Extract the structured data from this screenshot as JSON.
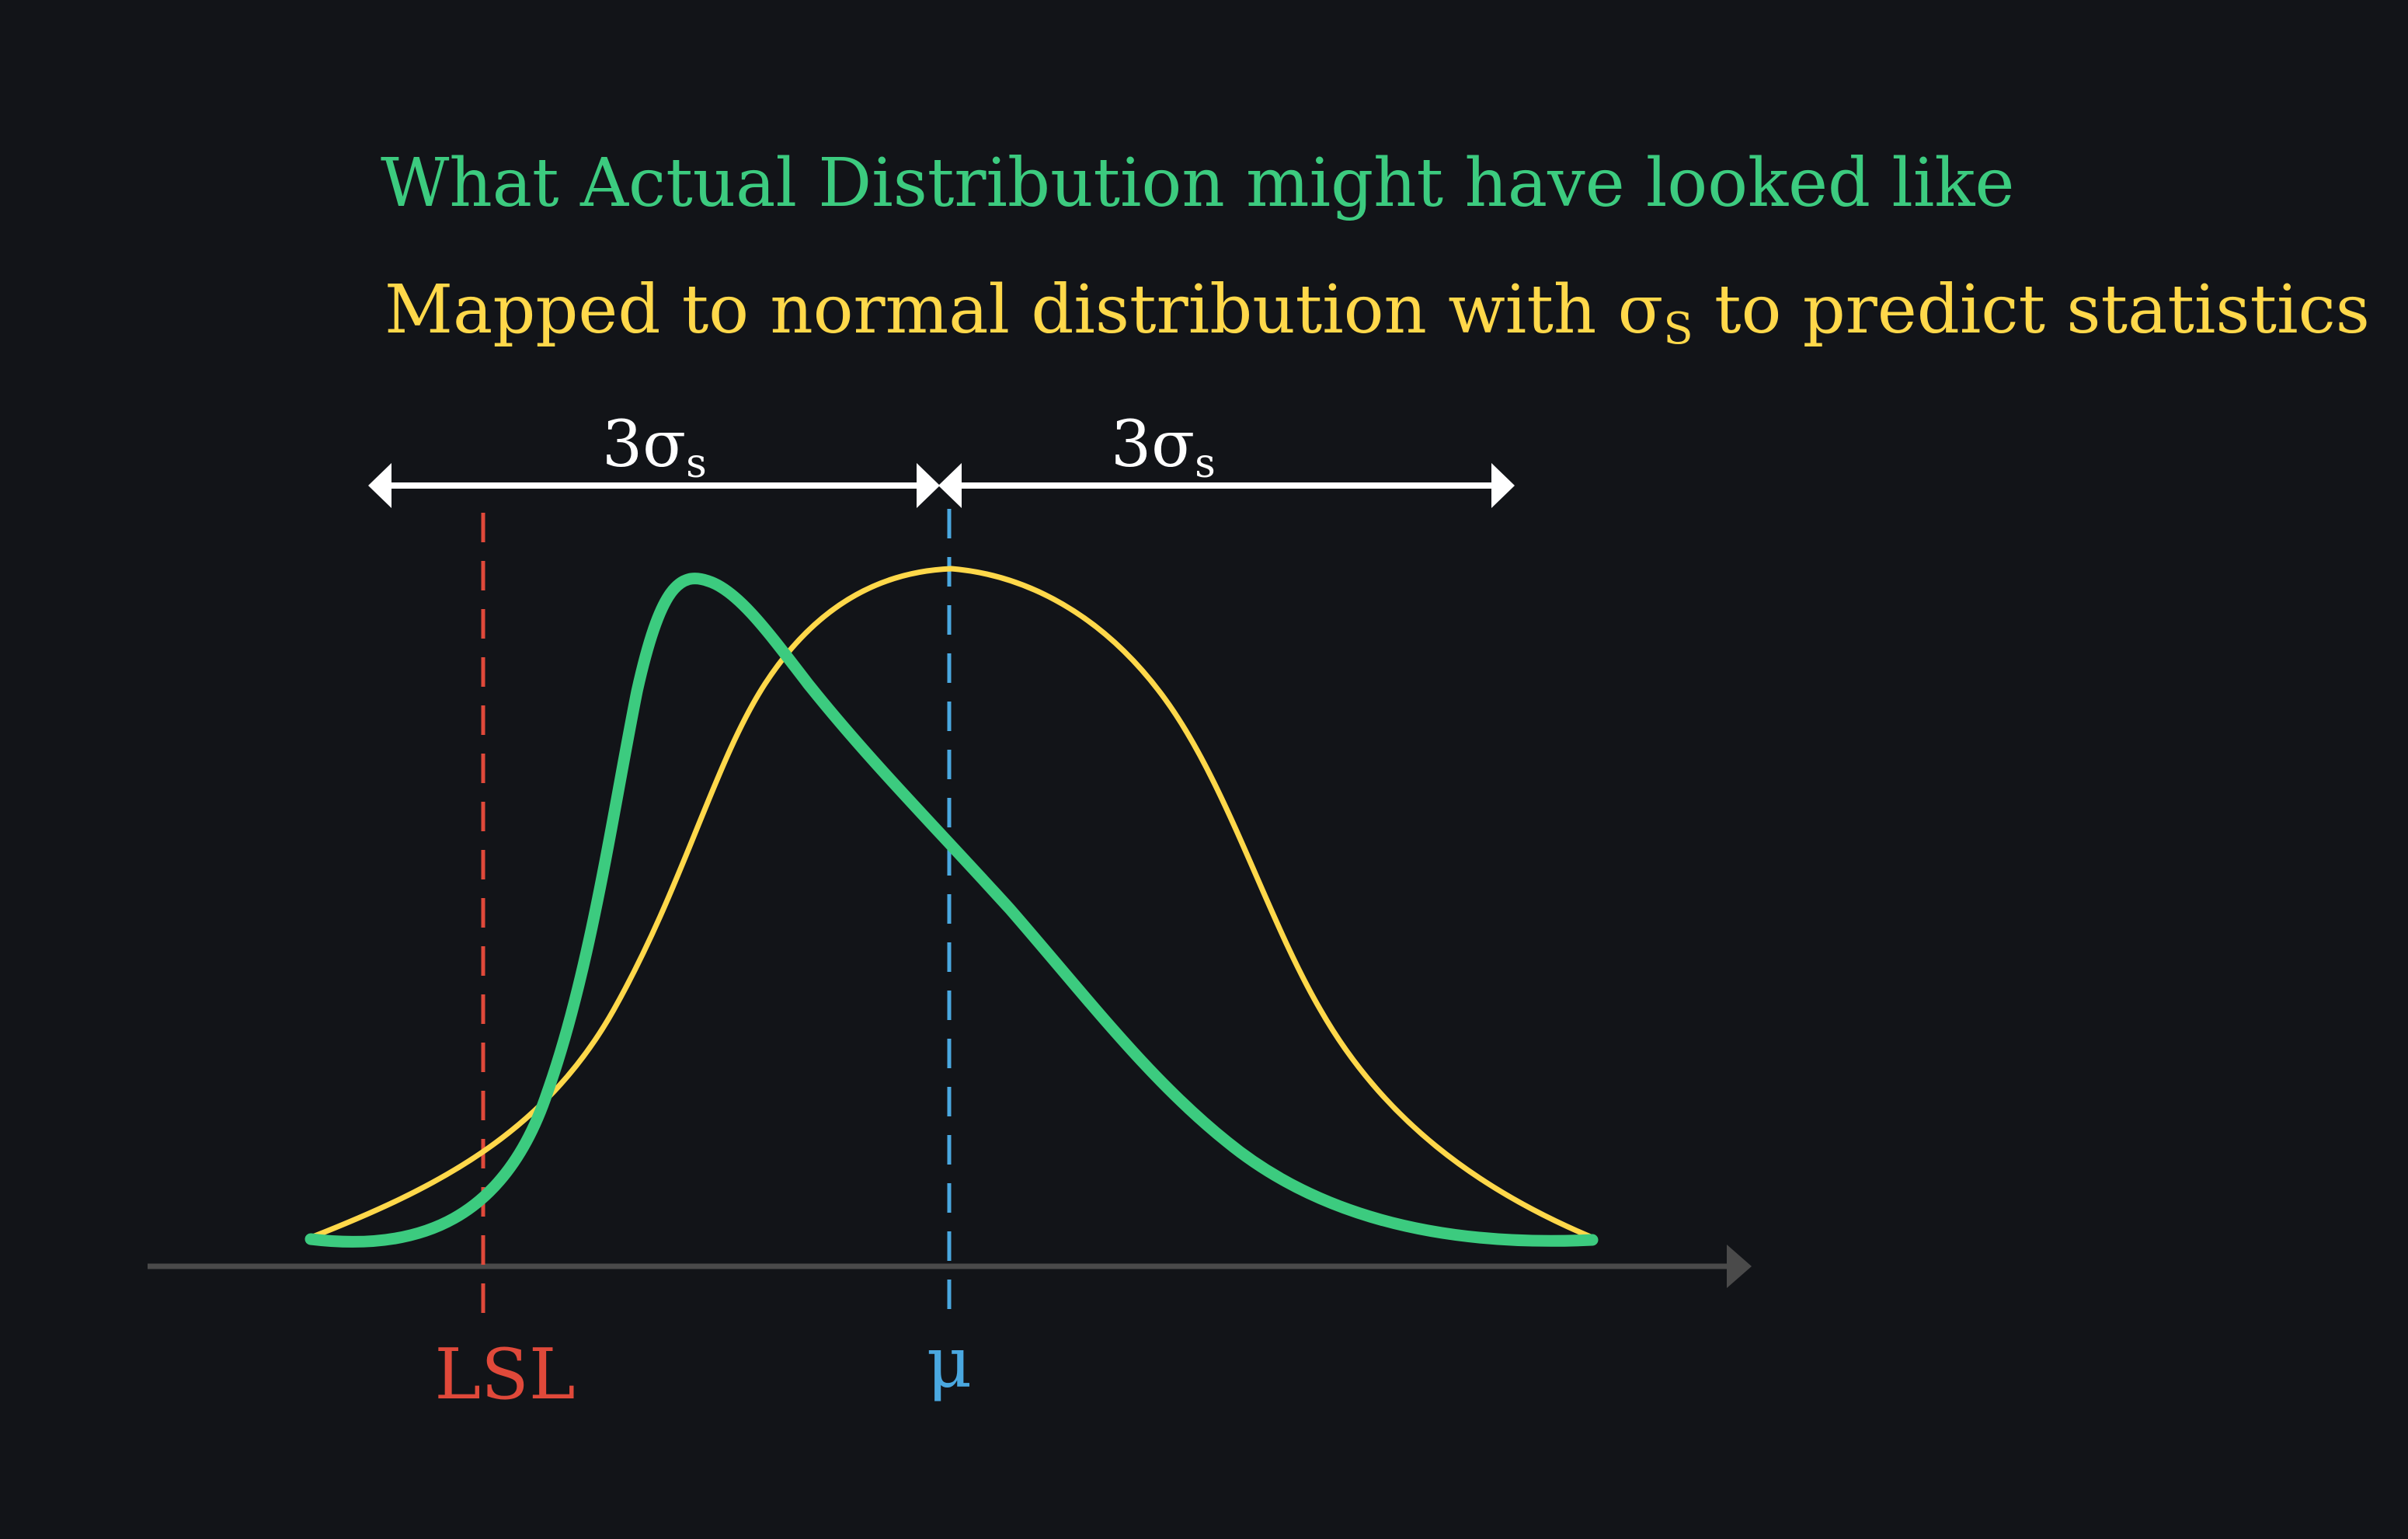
{
  "title_actual": "What Actual Distribution might have looked like",
  "title_mapped": {
    "before": "Mapped to normal distribution with ",
    "sigma": "σ",
    "subscript": "S",
    "after": " to predict statistics"
  },
  "span_left": {
    "coefficient": "3",
    "sigma": "σ",
    "subscript": "s"
  },
  "span_right": {
    "coefficient": "3",
    "sigma": "σ",
    "subscript": "s"
  },
  "lsl_label": "LSL",
  "mu_label": "μ",
  "colors": {
    "background": "#121418",
    "actual_distribution": "#3CCB7F",
    "normal_distribution": "#FFD84A",
    "lsl": "#E0493A",
    "mean": "#4AA8E0",
    "axis": "#4A4A4A",
    "span_arrows": "#FFFFFF"
  }
}
